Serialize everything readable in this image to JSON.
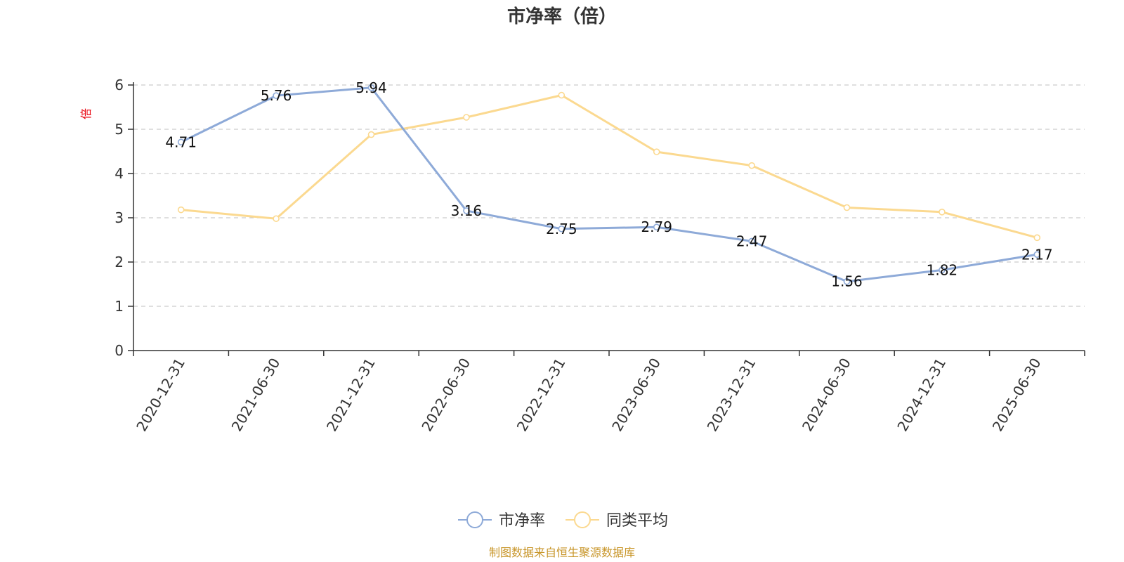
{
  "chart_data": {
    "type": "line",
    "title": "市净率（倍）",
    "ylabel": "倍",
    "ylim": [
      0,
      6
    ],
    "yticks": [
      "0",
      "1",
      "2",
      "3",
      "4",
      "5",
      "6"
    ],
    "grid": true,
    "legend_position": "bottom",
    "categories": [
      "2020-12-31",
      "2021-06-30",
      "2021-12-31",
      "2022-06-30",
      "2022-12-31",
      "2023-06-30",
      "2023-12-31",
      "2024-06-30",
      "2024-12-31",
      "2025-06-30"
    ],
    "series": [
      {
        "name": "市净率",
        "color": "#8eaad8",
        "values": [
          4.71,
          5.76,
          5.94,
          3.16,
          2.75,
          2.79,
          2.47,
          1.56,
          1.82,
          2.17
        ],
        "labels": [
          "4.71",
          "5.76",
          "5.94",
          "3.16",
          "2.75",
          "2.79",
          "2.47",
          "1.56",
          "1.82",
          "2.17"
        ]
      },
      {
        "name": "同类平均",
        "color": "#fbd990",
        "values": [
          3.18,
          2.98,
          4.88,
          5.27,
          5.77,
          4.49,
          4.18,
          3.23,
          3.13,
          2.55
        ]
      }
    ],
    "source": "制图数据来自恒生聚源数据库"
  }
}
